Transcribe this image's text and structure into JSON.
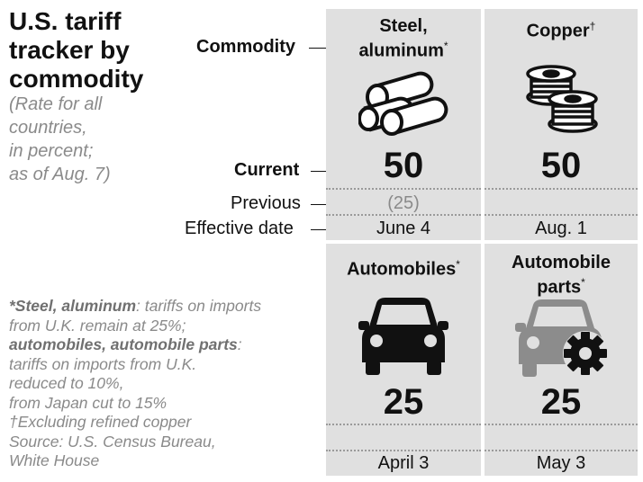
{
  "title": "U.S. tariff\ntracker by\ncommodity",
  "subtitle": "(Rate for all\ncountries,\nin percent;\nas of Aug. 7)",
  "row_labels": {
    "commodity": "Commodity",
    "current": "Current",
    "previous": "Previous",
    "effective_date": "Effective date"
  },
  "panels": [
    {
      "title": "Steel,\naluminum",
      "mark": "*",
      "icon": "steel-pipes-icon",
      "current": "50",
      "previous": "(25)",
      "effective_date": "June 4"
    },
    {
      "title": "Copper",
      "mark": "†",
      "icon": "copper-spools-icon",
      "current": "50",
      "previous": "",
      "effective_date": "Aug. 1"
    },
    {
      "title": "Automobiles",
      "mark": "*",
      "icon": "car-icon",
      "current": "25",
      "previous": "",
      "effective_date": "April 3"
    },
    {
      "title": "Automobile\nparts",
      "mark": "*",
      "icon": "car-gear-icon",
      "current": "25",
      "previous": "",
      "effective_date": "May 3"
    }
  ],
  "footnotes": {
    "f1_bold": "*Steel, aluminum",
    "f1_rest": ": tariffs on imports",
    "f2": "from U.K. remain at 25%;",
    "f3_bold": "automobiles, automobile parts",
    "f3_rest": ":",
    "f4": "tariffs on imports from U.K.",
    "f5": "reduced to 10%,",
    "f6": "from Japan cut to 15%",
    "f7": "†Excluding refined copper",
    "f8": "Source: U.S. Census Bureau,",
    "f9": "White House"
  },
  "colors": {
    "panel_bg": "#e0e0e0",
    "muted_text": "#8a8a8a",
    "icon_dark": "#111111",
    "icon_gray": "#8c8c8c"
  }
}
